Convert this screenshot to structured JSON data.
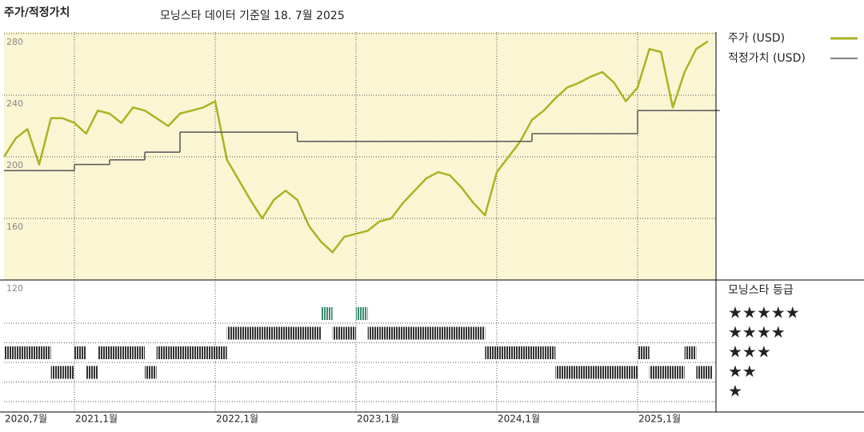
{
  "chart_data": {
    "type": "line",
    "title": "주가/적정가치",
    "subtitle": "모닝스타 데이터 기준일 18. 7월 2025",
    "x": [
      "2020-07",
      "2020-08",
      "2020-09",
      "2020-10",
      "2020-11",
      "2020-12",
      "2021-01",
      "2021-02",
      "2021-03",
      "2021-04",
      "2021-05",
      "2021-06",
      "2021-07",
      "2021-08",
      "2021-09",
      "2021-10",
      "2021-11",
      "2021-12",
      "2022-01",
      "2022-02",
      "2022-03",
      "2022-04",
      "2022-05",
      "2022-06",
      "2022-07",
      "2022-08",
      "2022-09",
      "2022-10",
      "2022-11",
      "2022-12",
      "2023-01",
      "2023-02",
      "2023-03",
      "2023-04",
      "2023-05",
      "2023-06",
      "2023-07",
      "2023-08",
      "2023-09",
      "2023-10",
      "2023-11",
      "2023-12",
      "2024-01",
      "2024-02",
      "2024-03",
      "2024-04",
      "2024-05",
      "2024-06",
      "2024-07",
      "2024-08",
      "2024-09",
      "2024-10",
      "2024-11",
      "2024-12",
      "2025-01",
      "2025-02",
      "2025-03",
      "2025-04",
      "2025-05",
      "2025-06",
      "2025-07"
    ],
    "series": [
      {
        "name": "주가 (USD)",
        "color": "#a9b423",
        "values": [
          200,
          212,
          218,
          195,
          225,
          225,
          222,
          215,
          230,
          228,
          222,
          232,
          230,
          225,
          220,
          228,
          230,
          232,
          236,
          198,
          185,
          172,
          160,
          172,
          178,
          172,
          155,
          145,
          138,
          148,
          150,
          152,
          158,
          160,
          170,
          178,
          186,
          190,
          188,
          180,
          170,
          162,
          190,
          200,
          210,
          224,
          230,
          238,
          245,
          248,
          252,
          255,
          248,
          236,
          245,
          270,
          268,
          232,
          255,
          270,
          275
        ]
      },
      {
        "name": "적정가치 (USD)",
        "color": "#555555",
        "step": true,
        "values": [
          191,
          191,
          191,
          191,
          191,
          191,
          195,
          195,
          195,
          198,
          198,
          198,
          203,
          203,
          203,
          216,
          216,
          216,
          216,
          216,
          216,
          216,
          216,
          216,
          216,
          210,
          210,
          210,
          210,
          210,
          210,
          210,
          210,
          210,
          210,
          210,
          210,
          210,
          210,
          210,
          210,
          210,
          210,
          210,
          210,
          215,
          215,
          215,
          215,
          215,
          215,
          215,
          215,
          215,
          230,
          230,
          230,
          230,
          230,
          230,
          230
        ]
      }
    ],
    "ylim": [
      120,
      281
    ],
    "yticks": [
      120,
      160,
      200,
      240,
      280
    ],
    "xticks": [
      {
        "value": "2020-07",
        "label": "2020,7월"
      },
      {
        "value": "2021-01",
        "label": "2021,1월"
      },
      {
        "value": "2022-01",
        "label": "2022,1월"
      },
      {
        "value": "2023-01",
        "label": "2023,1월"
      },
      {
        "value": "2024-01",
        "label": "2024,1월"
      },
      {
        "value": "2025-01",
        "label": "2025,1월"
      }
    ],
    "grid": true,
    "background": "#faf5d3",
    "rating": {
      "title": "모닝스타 등급",
      "labels": [
        "★",
        "★★",
        "★★★",
        "★★★★",
        "★★★★★"
      ],
      "colors": [
        "#333333",
        "#333333",
        "#333333",
        "#333333",
        "#3c8a6e"
      ],
      "values": [
        3,
        3,
        3,
        3,
        2,
        2,
        3,
        2,
        3,
        3,
        3,
        3,
        2,
        3,
        3,
        3,
        3,
        3,
        3,
        4,
        4,
        4,
        4,
        4,
        4,
        4,
        4,
        5,
        4,
        4,
        5,
        4,
        4,
        4,
        4,
        4,
        4,
        4,
        4,
        4,
        4,
        3,
        3,
        3,
        3,
        3,
        3,
        2,
        2,
        2,
        2,
        2,
        2,
        2,
        3,
        2,
        2,
        2,
        3,
        2,
        2
      ]
    }
  }
}
